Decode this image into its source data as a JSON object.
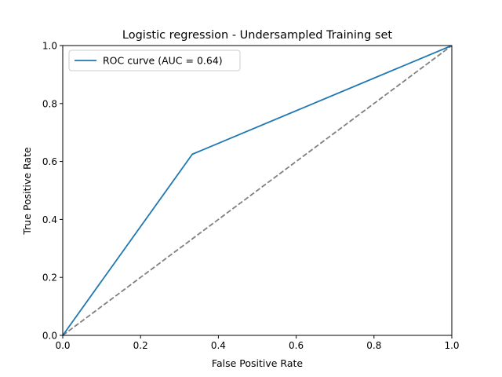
{
  "chart_data": {
    "type": "line",
    "title": "Logistic regression - Undersampled Training set",
    "xlabel": "False Positive Rate",
    "ylabel": "True Positive Rate",
    "xlim": [
      0.0,
      1.0
    ],
    "ylim": [
      0.0,
      1.0
    ],
    "x_ticks": [
      "0.0",
      "0.2",
      "0.4",
      "0.6",
      "0.8",
      "1.0"
    ],
    "y_ticks": [
      "0.0",
      "0.2",
      "0.4",
      "0.6",
      "0.8",
      "1.0"
    ],
    "grid": false,
    "legend_position": "upper-left",
    "series": [
      {
        "name": "ROC curve (AUC = 0.64)",
        "color": "#1f77b4",
        "style": "solid",
        "x": [
          0.0,
          0.333,
          1.0
        ],
        "y": [
          0.0,
          0.625,
          1.0
        ]
      },
      {
        "color": "#808080",
        "style": "dashed",
        "x": [
          0.0,
          1.0
        ],
        "y": [
          0.0,
          1.0
        ]
      }
    ]
  }
}
